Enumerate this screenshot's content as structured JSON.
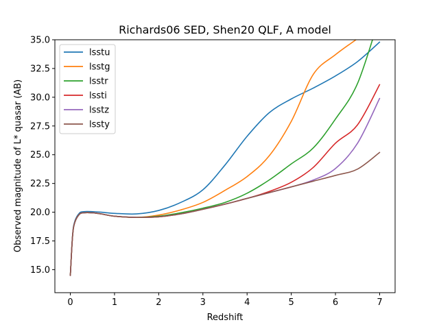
{
  "chart_data": {
    "type": "line",
    "title": "Richards06 SED, Shen20 QLF, A model",
    "xlabel": "Redshift",
    "ylabel": "Observed magnitude of L* quasar (AB)",
    "xlim": [
      -0.35,
      7.35
    ],
    "ylim": [
      13.0,
      35.0
    ],
    "xticks": [
      0,
      1,
      2,
      3,
      4,
      5,
      6,
      7
    ],
    "yticks": [
      15.0,
      17.5,
      20.0,
      22.5,
      25.0,
      27.5,
      30.0,
      32.5,
      35.0
    ],
    "ytick_labels": [
      "15.0",
      "17.5",
      "20.0",
      "22.5",
      "25.0",
      "27.5",
      "30.0",
      "32.5",
      "35.0"
    ],
    "grid": false,
    "legend_position": "top-left",
    "x": [
      0.0,
      0.05,
      0.1,
      0.2,
      0.3,
      0.5,
      0.7,
      1.0,
      1.5,
      2.0,
      2.5,
      3.0,
      3.5,
      4.0,
      4.5,
      5.0,
      5.5,
      6.0,
      6.5,
      7.0
    ],
    "series": [
      {
        "name": "lsstu",
        "color": "#1f77b4",
        "values": [
          14.5,
          18.0,
          19.2,
          19.9,
          20.05,
          20.05,
          20.0,
          19.9,
          19.85,
          20.15,
          20.85,
          21.95,
          24.1,
          26.6,
          28.65,
          29.85,
          30.8,
          31.85,
          33.1,
          34.8
        ]
      },
      {
        "name": "lsstg",
        "color": "#ff7f0e",
        "values": [
          14.5,
          17.9,
          19.1,
          19.8,
          19.95,
          19.95,
          19.85,
          19.65,
          19.55,
          19.75,
          20.2,
          20.85,
          21.9,
          23.1,
          24.9,
          27.9,
          32.0,
          33.7,
          35.1,
          36.5
        ]
      },
      {
        "name": "lsstr",
        "color": "#2ca02c",
        "values": [
          14.5,
          17.9,
          19.1,
          19.8,
          19.95,
          19.95,
          19.85,
          19.65,
          19.55,
          19.65,
          19.95,
          20.35,
          20.85,
          21.65,
          22.8,
          24.2,
          25.6,
          28.1,
          31.2,
          37.0
        ]
      },
      {
        "name": "lssti",
        "color": "#d62728",
        "values": [
          14.5,
          17.9,
          19.1,
          19.8,
          19.95,
          19.95,
          19.85,
          19.65,
          19.55,
          19.6,
          19.85,
          20.25,
          20.7,
          21.2,
          21.8,
          22.6,
          23.9,
          26.0,
          27.6,
          31.1
        ]
      },
      {
        "name": "lsstz",
        "color": "#9467bd",
        "values": [
          14.5,
          17.9,
          19.1,
          19.8,
          19.95,
          19.95,
          19.85,
          19.65,
          19.55,
          19.6,
          19.85,
          20.25,
          20.7,
          21.2,
          21.7,
          22.2,
          22.8,
          23.8,
          26.0,
          29.9
        ]
      },
      {
        "name": "lssty",
        "color": "#8c564b",
        "values": [
          14.5,
          17.9,
          19.1,
          19.8,
          19.95,
          19.95,
          19.85,
          19.65,
          19.55,
          19.6,
          19.85,
          20.25,
          20.7,
          21.2,
          21.7,
          22.2,
          22.7,
          23.2,
          23.75,
          25.2
        ]
      }
    ]
  }
}
